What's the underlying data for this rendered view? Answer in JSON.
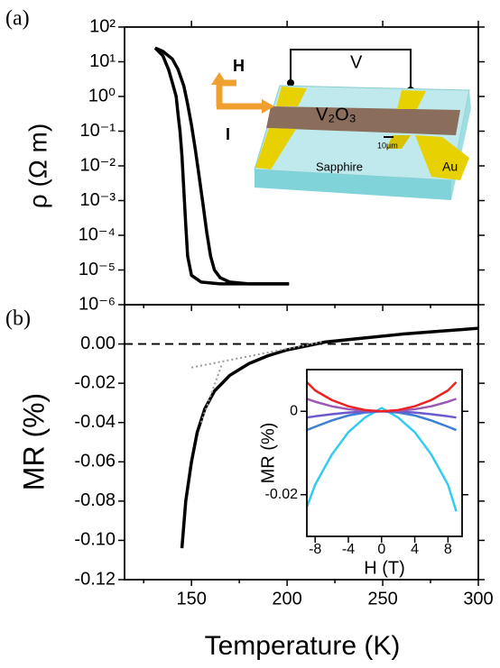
{
  "chart_data": [
    {
      "type": "line",
      "panel_label": "(a)",
      "y_label": "ρ (Ω m)",
      "yscale": "log",
      "xlim": [
        115,
        300
      ],
      "ylim": [
        1e-06,
        100
      ],
      "yticks": [
        {
          "value": 100,
          "label": "10²"
        },
        {
          "value": 10,
          "label": "10¹"
        },
        {
          "value": 1,
          "label": "10⁰"
        },
        {
          "value": 0.1,
          "label": "10⁻¹"
        },
        {
          "value": 0.01,
          "label": "10⁻²"
        },
        {
          "value": 0.001,
          "label": "10⁻³"
        },
        {
          "value": 0.0001,
          "label": "10⁻⁴"
        },
        {
          "value": 1e-05,
          "label": "10⁻⁵"
        },
        {
          "value": 1e-06,
          "label": "10⁻⁶"
        }
      ],
      "series": [
        {
          "color": "#000000",
          "x": [
            131,
            135,
            138,
            140,
            142,
            143,
            144,
            145,
            146,
            147,
            148,
            150,
            155,
            165,
            180,
            201
          ],
          "values": [
            25,
            15,
            6,
            2.5,
            1,
            0.3,
            0.1,
            0.02,
            0.002,
            0.0002,
            2.5e-05,
            7e-06,
            4.5e-06,
            4e-06,
            4e-06,
            4e-06
          ]
        },
        {
          "color": "#000000",
          "x": [
            131,
            135,
            140,
            143,
            146,
            148,
            150,
            152,
            154,
            156,
            158,
            160,
            162,
            165,
            170,
            180,
            201
          ],
          "values": [
            25,
            20,
            12,
            6,
            2,
            0.6,
            0.15,
            0.03,
            0.005,
            0.0008,
            0.00012,
            2.5e-05,
            1e-05,
            6e-06,
            4.5e-06,
            4e-06,
            4e-06
          ]
        }
      ],
      "annotations": [
        "H",
        "I",
        "V",
        "V₂O₃",
        "10μm",
        "Sapphire",
        "Au"
      ]
    },
    {
      "type": "line",
      "panel_label": "(b)",
      "y_label": "MR (%)",
      "x_label": "Temperature (K)",
      "xlim": [
        115,
        300
      ],
      "ylim": [
        -0.12,
        0.02
      ],
      "xticks": [
        150,
        200,
        250,
        300
      ],
      "xminor": [
        125,
        175,
        225,
        275
      ],
      "yticks": [
        -0.12,
        {
          "value": -0.1,
          "label": "-0.10"
        },
        -0.08,
        -0.06,
        -0.04,
        -0.02,
        {
          "value": 0,
          "label": "0.00"
        }
      ],
      "reference_line": 0,
      "series": [
        {
          "color": "#000000",
          "dash": false,
          "x": [
            145,
            147,
            150,
            153,
            157,
            162,
            170,
            180,
            190,
            200,
            210,
            220,
            240,
            260,
            280,
            300
          ],
          "values": [
            -0.104,
            -0.08,
            -0.06,
            -0.045,
            -0.033,
            -0.024,
            -0.016,
            -0.01,
            -0.006,
            -0.003,
            -0.001,
            0.001,
            0.003,
            0.005,
            0.0065,
            0.008
          ]
        },
        {
          "color": "#999999",
          "dash": true,
          "x": [
            155,
            166
          ],
          "values": [
            -0.04,
            -0.01
          ]
        },
        {
          "color": "#999999",
          "dash": true,
          "x": [
            150,
            218
          ],
          "values": [
            -0.012,
            0.001
          ]
        }
      ]
    },
    {
      "type": "line",
      "y_label": "MR (%)",
      "x_label": "H (T)",
      "xlim": [
        -9,
        9.7
      ],
      "ylim": [
        -0.03,
        0.01
      ],
      "xticks": [
        -8,
        -4,
        0,
        4,
        8
      ],
      "yticks": [
        -0.02,
        0
      ],
      "series": [
        {
          "color": "#33ccee",
          "x": [
            -9,
            -8,
            -6,
            -4,
            -2,
            0,
            2,
            4,
            6,
            8,
            9
          ],
          "values": [
            -0.023,
            -0.0176,
            -0.0104,
            -0.005,
            -0.0015,
            0.0008,
            -0.0015,
            -0.005,
            -0.0104,
            -0.0176,
            -0.024
          ]
        },
        {
          "color": "#3d7fd6",
          "x": [
            -9,
            -8,
            -6,
            -4,
            -2,
            0,
            2,
            4,
            6,
            8,
            9
          ],
          "values": [
            -0.0045,
            -0.0037,
            -0.0022,
            -0.001,
            -0.0003,
            0,
            -0.0003,
            -0.001,
            -0.0022,
            -0.0037,
            -0.0045
          ]
        },
        {
          "color": "#6a5acd",
          "x": [
            -9,
            -8,
            -6,
            -4,
            -2,
            0,
            2,
            4,
            6,
            8,
            9
          ],
          "values": [
            -0.0015,
            -0.0012,
            -0.0007,
            -0.0003,
            -0.0001,
            0,
            -0.0001,
            -0.0003,
            -0.0007,
            -0.0012,
            -0.0015
          ]
        },
        {
          "color": "#9b59b6",
          "x": [
            -9,
            -8,
            -6,
            -4,
            -2,
            0,
            2,
            4,
            6,
            8,
            9
          ],
          "values": [
            0.003,
            0.0023,
            0.0012,
            0.0005,
            0.0001,
            0,
            0.0001,
            0.0005,
            0.0012,
            0.0023,
            0.003
          ]
        },
        {
          "color": "#ee2222",
          "x": [
            -9,
            -8,
            -6,
            -4,
            -2,
            0,
            2,
            4,
            6,
            8,
            9
          ],
          "values": [
            0.007,
            0.005,
            0.0027,
            0.0012,
            0.0003,
            0,
            0.0003,
            0.0012,
            0.0027,
            0.005,
            0.007
          ]
        }
      ]
    }
  ]
}
